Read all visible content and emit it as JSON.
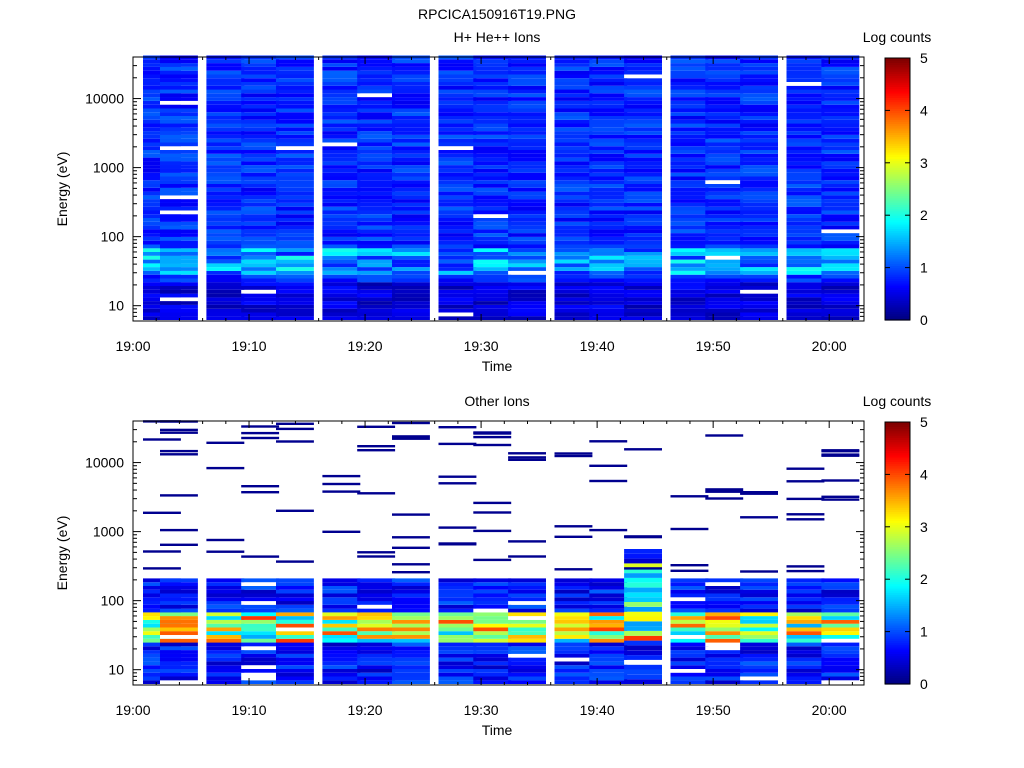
{
  "figure_title": "RPCICA150916T19.PNG",
  "chart_data": [
    {
      "type": "heatmap",
      "title": "H+ He++ Ions",
      "xlabel": "Time",
      "ylabel": "Energy (eV)",
      "x_ticks": [
        "19:00",
        "19:10",
        "19:20",
        "19:30",
        "19:40",
        "19:50",
        "20:00"
      ],
      "y_ticks": [
        "10",
        "100",
        "1000",
        "10000"
      ],
      "y_scale": "log",
      "ylim": [
        6,
        40000
      ],
      "xlim": [
        "19:00",
        "20:03"
      ],
      "colorbar": {
        "label": "Log counts",
        "range": [
          0,
          5
        ],
        "ticks": [
          "0",
          "1",
          "2",
          "3",
          "4",
          "5"
        ]
      },
      "time_bins": [
        "19:01",
        "19:04",
        "19:08",
        "19:11",
        "19:14",
        "19:18",
        "19:21",
        "19:24",
        "19:28",
        "19:31",
        "19:34",
        "19:38",
        "19:41",
        "19:44",
        "19:48",
        "19:51",
        "19:54",
        "19:58",
        "20:01"
      ],
      "energy_bins_eV": [
        8,
        11,
        15,
        20,
        27,
        36,
        48,
        64,
        86,
        115,
        154,
        206,
        276,
        369,
        494,
        661,
        885,
        1184,
        1585,
        2121,
        2839,
        3800,
        5086,
        6807,
        9110,
        12193,
        16319,
        21842,
        29233,
        39125
      ],
      "colors": {
        "main": "#00008f"
      }
    },
    {
      "type": "heatmap",
      "title": "Other Ions",
      "xlabel": "Time",
      "ylabel": "Energy (eV)",
      "x_ticks": [
        "19:00",
        "19:10",
        "19:20",
        "19:30",
        "19:40",
        "19:50",
        "20:00"
      ],
      "y_ticks": [
        "10",
        "100",
        "1000",
        "10000"
      ],
      "y_scale": "log",
      "ylim": [
        6,
        40000
      ],
      "xlim": [
        "19:00",
        "20:03"
      ],
      "colorbar": {
        "label": "Log counts",
        "range": [
          0,
          5
        ],
        "ticks": [
          "0",
          "1",
          "2",
          "3",
          "4",
          "5"
        ]
      },
      "time_bins": [
        "19:01",
        "19:04",
        "19:08",
        "19:11",
        "19:14",
        "19:18",
        "19:21",
        "19:24",
        "19:28",
        "19:31",
        "19:34",
        "19:38",
        "19:41",
        "19:44",
        "19:48",
        "19:51",
        "19:54",
        "19:58",
        "20:01"
      ],
      "energy_bins_eV": [
        8,
        11,
        15,
        20,
        27,
        36,
        48,
        64,
        86,
        115,
        154,
        206,
        276,
        369,
        494,
        661,
        885,
        1184,
        1585,
        2121,
        2839,
        3800,
        5086,
        6807,
        9110,
        12193,
        16319,
        21842,
        29233,
        39125
      ],
      "sparse_line_energies_eV": [
        39000,
        26000,
        16000,
        9500,
        6500,
        4200,
        2600,
        1600,
        1000,
        700
      ],
      "colors": {
        "main": "#00008f"
      }
    }
  ]
}
